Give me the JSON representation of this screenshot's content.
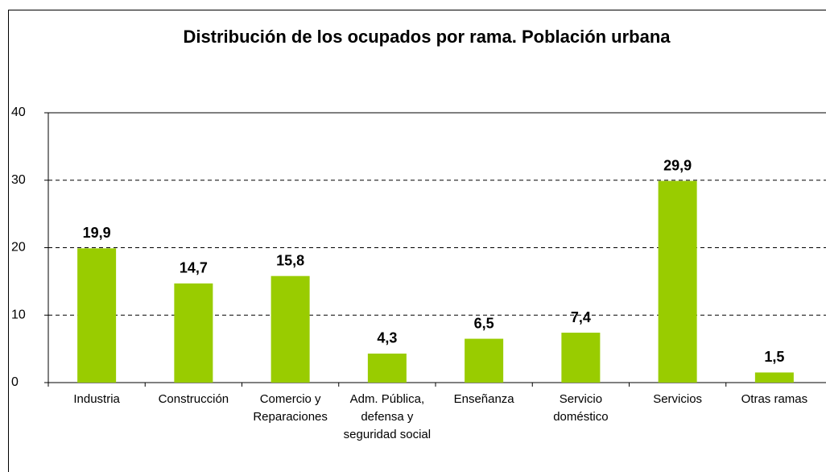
{
  "chart_data": {
    "type": "bar",
    "title": "Distribución de los ocupados por rama. Población urbana",
    "categories": [
      "Industria",
      "Construcción",
      "Comercio y Reparaciones",
      "Adm. Pública, defensa y seguridad social",
      "Enseñanza",
      "Servicio doméstico",
      "Servicios",
      "Otras ramas"
    ],
    "values": [
      19.9,
      14.7,
      15.8,
      4.3,
      6.5,
      7.4,
      29.9,
      1.5
    ],
    "value_labels": [
      "19,9",
      "14,7",
      "15,8",
      "4,3",
      "6,5",
      "7,4",
      "29,9",
      "1,5"
    ],
    "color": "#99cc00",
    "ylim": [
      0,
      40
    ],
    "yticks": [
      0,
      10,
      20,
      30,
      40
    ],
    "grid": true
  }
}
